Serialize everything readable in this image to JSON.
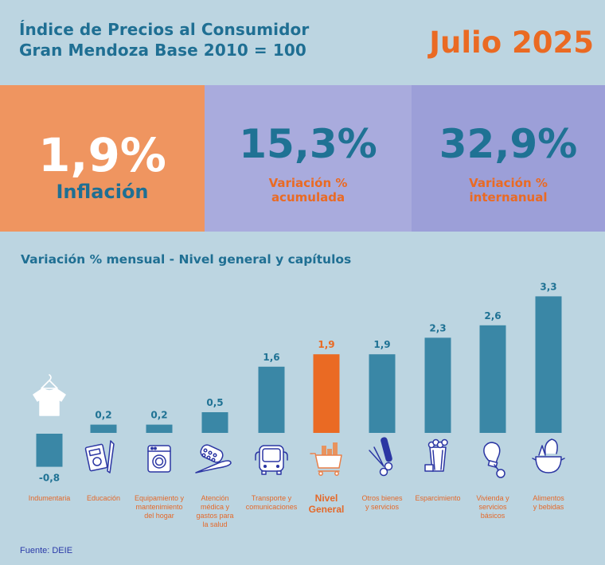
{
  "header": {
    "title_line1": "Índice de Precios al Consumidor",
    "title_line2": "Gran Mendoza Base 2010 = 100",
    "period": "Julio 2025"
  },
  "kpis": [
    {
      "value": "1,9%",
      "label": "Inflación"
    },
    {
      "value": "15,3%",
      "label_line1": "Variación %",
      "label_line2": "acumulada"
    },
    {
      "value": "32,9%",
      "label_line1": "Variación %",
      "label_line2": "internanual"
    }
  ],
  "colors": {
    "bar": "#3a87a6",
    "highlight": "#ea6a23",
    "label_teal": "#1f7294",
    "icon_stroke": "#2b36a3"
  },
  "chart_data": {
    "type": "bar",
    "title": "Variación % mensual - Nivel general y capítulos",
    "xlabel": "",
    "ylabel": "",
    "ylim": [
      -0.8,
      3.3
    ],
    "grid": false,
    "categories": [
      "Indumentaria",
      "Educación",
      "Equipamiento y mantenimiento del hogar",
      "Atención médica y gastos para la salud",
      "Transporte y comunicaciones",
      "Nivel General",
      "Otros bienes y servicios",
      "Esparcimiento",
      "Vivienda y servicios básicos",
      "Alimentos y bebidas"
    ],
    "category_lines": [
      [
        "Indumentaria"
      ],
      [
        "Educación"
      ],
      [
        "Equipamiento y",
        "mantenimiento",
        "del hogar"
      ],
      [
        "Atención",
        "médica y",
        "gastos para",
        "la salud"
      ],
      [
        "Transporte y",
        "comunicaciones"
      ],
      [
        "Nivel",
        "General"
      ],
      [
        "Otros bienes",
        "y servicios"
      ],
      [
        "Esparcimiento"
      ],
      [
        "Vivienda y",
        "servicios",
        "básicos"
      ],
      [
        "Alimentos",
        "y bebidas"
      ]
    ],
    "values": [
      -0.8,
      0.2,
      0.2,
      0.5,
      1.6,
      1.9,
      1.9,
      2.3,
      2.6,
      3.3
    ],
    "value_labels": [
      "-0,8",
      "0,2",
      "0,2",
      "0,5",
      "1,6",
      "1,9",
      "1,9",
      "2,3",
      "2,6",
      "3,3"
    ],
    "highlight_index": 5,
    "icons": [
      "tshirt-icon",
      "notebook-pen-icon",
      "washing-machine-icon",
      "medicine-thermometer-icon",
      "bus-icon",
      "shopping-cart-icon",
      "scissors-comb-icon",
      "popcorn-3d-glasses-icon",
      "lightbulb-wrench-icon",
      "cooking-pot-icon"
    ]
  },
  "footer": {
    "source": "Fuente: DEIE"
  }
}
